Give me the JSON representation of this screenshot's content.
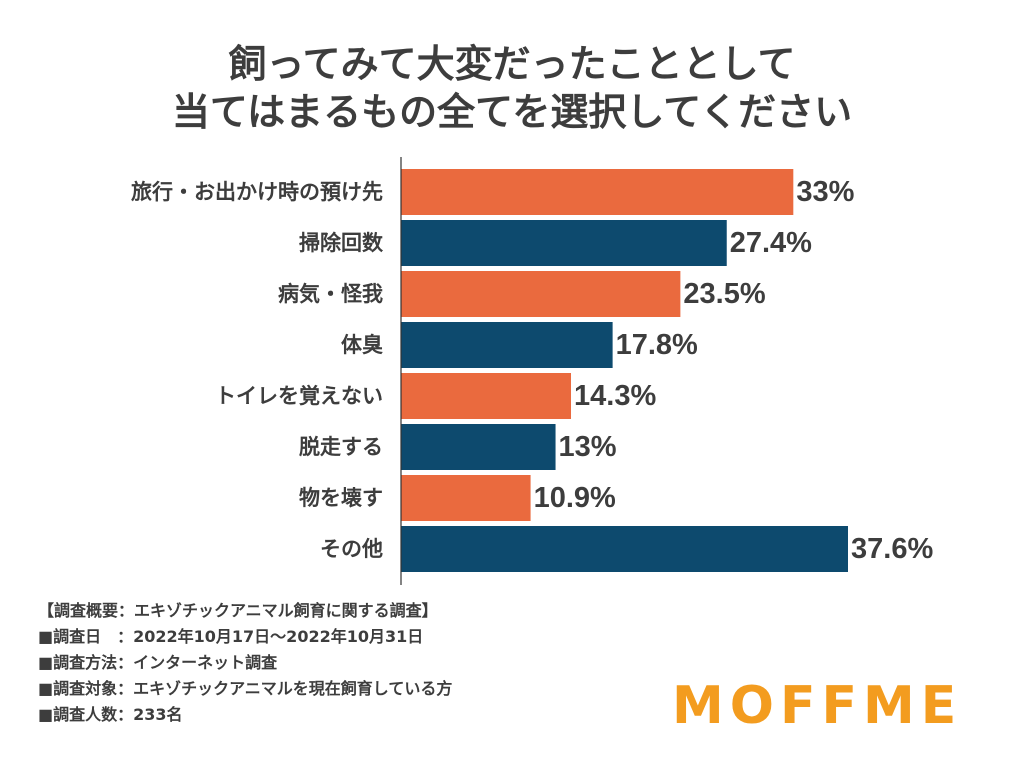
{
  "title": {
    "line1": "飼ってみて大変だったこととして",
    "line2": "当てはまるもの全てを選択してください"
  },
  "chart_data": {
    "type": "bar",
    "orientation": "horizontal",
    "categories": [
      "旅行・お出かけ時の預け先",
      "掃除回数",
      "病気・怪我",
      "体臭",
      "トイレを覚えない",
      "脱走する",
      "物を壊す",
      "その他"
    ],
    "values": [
      33,
      27.4,
      23.5,
      17.8,
      14.3,
      13,
      10.9,
      37.6
    ],
    "value_labels": [
      "33%",
      "27.4%",
      "23.5%",
      "17.8%",
      "14.3%",
      "13%",
      "10.9%",
      "37.6%"
    ],
    "bar_colors": [
      "#ea6a3e",
      "#0d4a6e",
      "#ea6a3e",
      "#0d4a6e",
      "#ea6a3e",
      "#0d4a6e",
      "#ea6a3e",
      "#0d4a6e"
    ],
    "xlim": [
      0,
      37.6
    ],
    "grid": false,
    "legend": "none"
  },
  "notes": [
    "【調査概要：エキゾチックアニマル飼育に関する調査】",
    "■調査日　：2022年10月17日〜2022年10月31日",
    "■調査方法：インターネット調査",
    "■調査対象：エキゾチックアニマルを現在飼育している方",
    "■調査人数：233名"
  ],
  "logo": "MOFFME",
  "colors": {
    "orange": "#ea6a3e",
    "navy": "#0d4a6e",
    "logo": "#f39c1f",
    "text": "#3d3d3d"
  }
}
